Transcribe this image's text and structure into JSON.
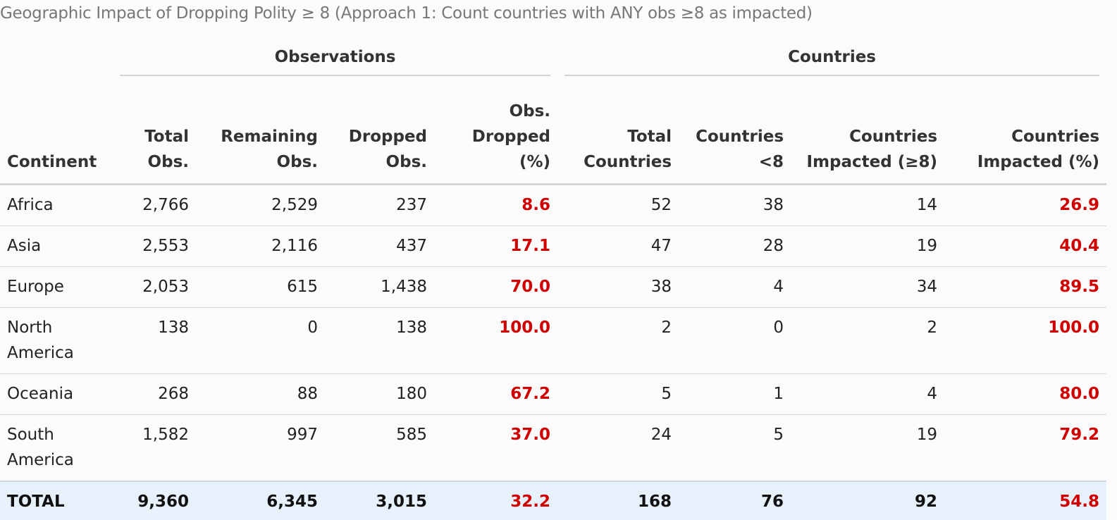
{
  "caption": "Geographic Impact of Dropping Polity ≥ 8 (Approach 1: Count countries with ANY obs ≥8 as impacted)",
  "spanners": {
    "observations": "Observations",
    "countries": "Countries"
  },
  "columns": {
    "continent": "Continent",
    "total_obs_1": "Total",
    "total_obs_2": "Obs.",
    "remaining_obs_1": "Remaining",
    "remaining_obs_2": "Obs.",
    "dropped_obs_1": "Dropped",
    "dropped_obs_2": "Obs.",
    "obs_dropped_pct_1": "Obs.",
    "obs_dropped_pct_2": "Dropped",
    "obs_dropped_pct_3": "(%)",
    "total_countries_1": "Total",
    "total_countries_2": "Countries",
    "countries_lt8_1": "Countries",
    "countries_lt8_2": "<8",
    "countries_impacted_1": "Countries",
    "countries_impacted_2": "Impacted (≥8)",
    "countries_impacted_pct_1": "Countries",
    "countries_impacted_pct_2": "Impacted (%)"
  },
  "rows": [
    {
      "continent_1": "Africa",
      "continent_2": "",
      "total_obs": "2,766",
      "remaining_obs": "2,529",
      "dropped_obs": "237",
      "obs_dropped_pct": "8.6",
      "total_countries": "52",
      "countries_lt8": "38",
      "countries_impacted": "14",
      "countries_impacted_pct": "26.9"
    },
    {
      "continent_1": "Asia",
      "continent_2": "",
      "total_obs": "2,553",
      "remaining_obs": "2,116",
      "dropped_obs": "437",
      "obs_dropped_pct": "17.1",
      "total_countries": "47",
      "countries_lt8": "28",
      "countries_impacted": "19",
      "countries_impacted_pct": "40.4"
    },
    {
      "continent_1": "Europe",
      "continent_2": "",
      "total_obs": "2,053",
      "remaining_obs": "615",
      "dropped_obs": "1,438",
      "obs_dropped_pct": "70.0",
      "total_countries": "38",
      "countries_lt8": "4",
      "countries_impacted": "34",
      "countries_impacted_pct": "89.5"
    },
    {
      "continent_1": "North",
      "continent_2": "America",
      "total_obs": "138",
      "remaining_obs": "0",
      "dropped_obs": "138",
      "obs_dropped_pct": "100.0",
      "total_countries": "2",
      "countries_lt8": "0",
      "countries_impacted": "2",
      "countries_impacted_pct": "100.0"
    },
    {
      "continent_1": "Oceania",
      "continent_2": "",
      "total_obs": "268",
      "remaining_obs": "88",
      "dropped_obs": "180",
      "obs_dropped_pct": "67.2",
      "total_countries": "5",
      "countries_lt8": "1",
      "countries_impacted": "4",
      "countries_impacted_pct": "80.0"
    },
    {
      "continent_1": "South",
      "continent_2": "America",
      "total_obs": "1,582",
      "remaining_obs": "997",
      "dropped_obs": "585",
      "obs_dropped_pct": "37.0",
      "total_countries": "24",
      "countries_lt8": "5",
      "countries_impacted": "19",
      "countries_impacted_pct": "79.2"
    }
  ],
  "total": {
    "continent": "TOTAL",
    "total_obs": "9,360",
    "remaining_obs": "6,345",
    "dropped_obs": "3,015",
    "obs_dropped_pct": "32.2",
    "total_countries": "168",
    "countries_lt8": "76",
    "countries_impacted": "92",
    "countries_impacted_pct": "54.8"
  },
  "colors": {
    "percent_text": "#d00000",
    "total_row_background": "#e6f1fb",
    "caption_text": "#777777"
  }
}
